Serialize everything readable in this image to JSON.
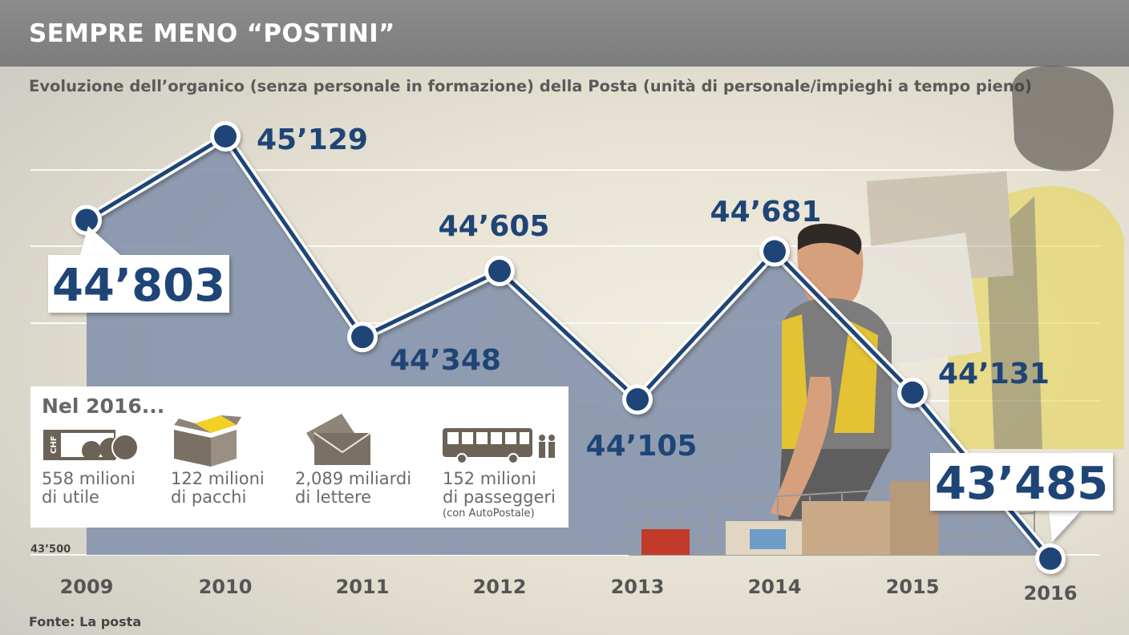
{
  "header": {
    "title": "SEMPRE MENO “POSTINI”",
    "subtitle": "Evoluzione dell’organico (senza personale in formazione) della Posta (unità di personale/impieghi a tempo pieno)"
  },
  "source": "Fonte: La posta",
  "chart_data": {
    "type": "area",
    "title": "SEMPRE MENO “POSTINI”",
    "subtitle": "Evoluzione dell’organico (senza personale in formazione) della Posta (unità di personale/impieghi a tempo pieno)",
    "x": [
      "2009",
      "2010",
      "2011",
      "2012",
      "2013",
      "2014",
      "2015",
      "2016"
    ],
    "values": [
      44803,
      45129,
      44348,
      44605,
      44105,
      44681,
      44131,
      43485
    ],
    "labels": [
      "44’803",
      "45’129",
      "44’348",
      "44’605",
      "44’105",
      "44’681",
      "44’131",
      "43’485"
    ],
    "y_min_label": "43’500",
    "ylim": [
      43500,
      45200
    ],
    "grid": true,
    "line_color": "#1f4577",
    "area_color": "#8795ad"
  },
  "info_box": {
    "title": "Nel 2016...",
    "items": [
      {
        "icon": "coins-banknote-icon",
        "line1": "558 milioni",
        "line2": "di utile",
        "note": "",
        "icon_text": "CHF"
      },
      {
        "icon": "parcel-box-icon",
        "line1": "122 milioni",
        "line2": "di pacchi",
        "note": ""
      },
      {
        "icon": "envelope-icon",
        "line1": "2,089 miliardi",
        "line2": "di lettere",
        "note": ""
      },
      {
        "icon": "bus-passengers-icon",
        "line1": "152 milioni",
        "line2": "di passeggeri",
        "note": "(con AutoPostale)"
      }
    ]
  }
}
